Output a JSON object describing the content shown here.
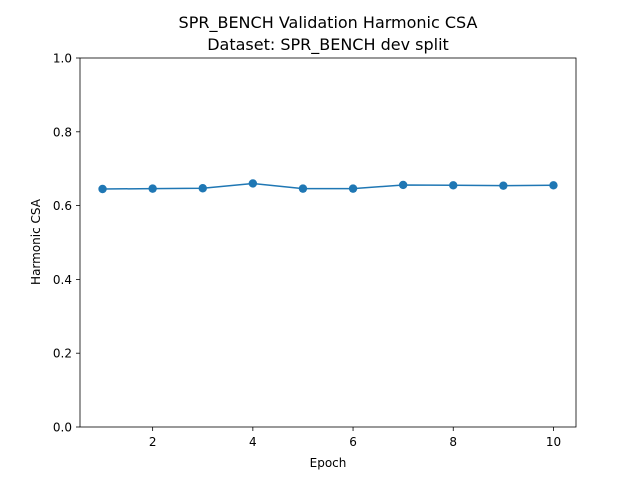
{
  "chart_data": {
    "type": "line",
    "title": "SPR_BENCH Validation Harmonic CSA",
    "subtitle": "Dataset: SPR_BENCH dev split",
    "xlabel": "Epoch",
    "ylabel": "Harmonic CSA",
    "x": [
      1,
      2,
      3,
      4,
      5,
      6,
      7,
      8,
      9,
      10
    ],
    "series": [
      {
        "name": "Harmonic CSA",
        "values": [
          0.645,
          0.646,
          0.647,
          0.66,
          0.646,
          0.646,
          0.656,
          0.655,
          0.654,
          0.655
        ],
        "color": "#1f77b4"
      }
    ],
    "xlim": [
      0.55,
      10.45
    ],
    "ylim": [
      0.0,
      1.0
    ],
    "xticks": [
      2,
      4,
      6,
      8,
      10
    ],
    "xtick_labels": [
      "2",
      "4",
      "6",
      "8",
      "10"
    ],
    "yticks": [
      0.0,
      0.2,
      0.4,
      0.6,
      0.8,
      1.0
    ],
    "ytick_labels": [
      "0.0",
      "0.2",
      "0.4",
      "0.6",
      "0.8",
      "1.0"
    ],
    "grid": false,
    "legend": "none"
  }
}
